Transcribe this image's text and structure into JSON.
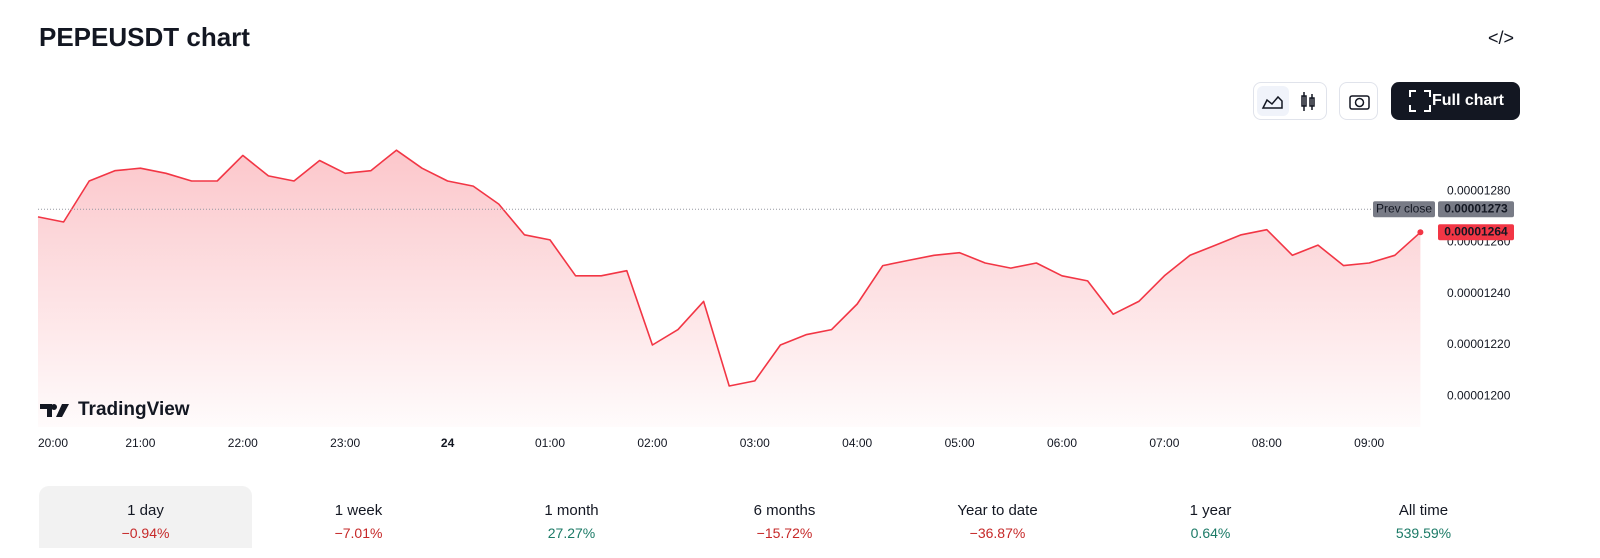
{
  "title": "PEPEUSDT chart",
  "full_chart_button": "Full chart",
  "watermark": "TradingView",
  "chart_data": {
    "type": "line",
    "color": "#f23645",
    "categories": [
      "20:00",
      null,
      null,
      null,
      "21:00",
      null,
      null,
      null,
      "22:00",
      null,
      null,
      null,
      "23:00",
      null,
      null,
      null,
      "24",
      null,
      null,
      null,
      "01:00",
      null,
      null,
      null,
      "02:00",
      null,
      null,
      null,
      "03:00",
      null,
      null,
      null,
      "04:00",
      null,
      null,
      null,
      "05:00",
      null,
      null,
      null,
      "06:00",
      null,
      null,
      null,
      "07:00",
      null,
      null,
      null,
      "08:00",
      null,
      null,
      null,
      "09:00",
      null,
      null
    ],
    "values": [
      1.27e-05,
      1.268e-05,
      1.284e-05,
      1.288e-05,
      1.289e-05,
      1.287e-05,
      1.284e-05,
      1.284e-05,
      1.294e-05,
      1.286e-05,
      1.284e-05,
      1.292e-05,
      1.287e-05,
      1.288e-05,
      1.296e-05,
      1.289e-05,
      1.284e-05,
      1.282e-05,
      1.275e-05,
      1.263e-05,
      1.261e-05,
      1.247e-05,
      1.247e-05,
      1.249e-05,
      1.22e-05,
      1.226e-05,
      1.237e-05,
      1.204e-05,
      1.206e-05,
      1.22e-05,
      1.224e-05,
      1.226e-05,
      1.236e-05,
      1.251e-05,
      1.253e-05,
      1.255e-05,
      1.256e-05,
      1.252e-05,
      1.25e-05,
      1.252e-05,
      1.247e-05,
      1.245e-05,
      1.232e-05,
      1.237e-05,
      1.247e-05,
      1.255e-05,
      1.259e-05,
      1.263e-05,
      1.265e-05,
      1.255e-05,
      1.259e-05,
      1.251e-05,
      1.252e-05,
      1.255e-05,
      1.264e-05
    ],
    "ylim": [
      1.188e-05,
      1.3e-05
    ],
    "yticks": [
      {
        "value": 1.2e-05,
        "label": "0.00001200"
      },
      {
        "value": 1.22e-05,
        "label": "0.00001220"
      },
      {
        "value": 1.24e-05,
        "label": "0.00001240"
      },
      {
        "value": 1.26e-05,
        "label": "0.00001260"
      },
      {
        "value": 1.28e-05,
        "label": "0.00001280"
      }
    ],
    "reference_line": {
      "name": "Prev close",
      "value": 1.273e-05,
      "label": "0.00001273"
    },
    "last_price": {
      "value": 1.264e-05,
      "label": "0.00001264"
    }
  },
  "periods": [
    {
      "name": "1 day",
      "change": "−0.94%",
      "color": "#c62828",
      "selected": true
    },
    {
      "name": "1 week",
      "change": "−7.01%",
      "color": "#c62828",
      "selected": false
    },
    {
      "name": "1 month",
      "change": "27.27%",
      "color": "#1b7a66",
      "selected": false
    },
    {
      "name": "6 months",
      "change": "−15.72%",
      "color": "#c62828",
      "selected": false
    },
    {
      "name": "Year to date",
      "change": "−36.87%",
      "color": "#c62828",
      "selected": false
    },
    {
      "name": "1 year",
      "change": "0.64%",
      "color": "#1b7a66",
      "selected": false
    },
    {
      "name": "All time",
      "change": "539.59%",
      "color": "#1b7a66",
      "selected": false
    }
  ]
}
